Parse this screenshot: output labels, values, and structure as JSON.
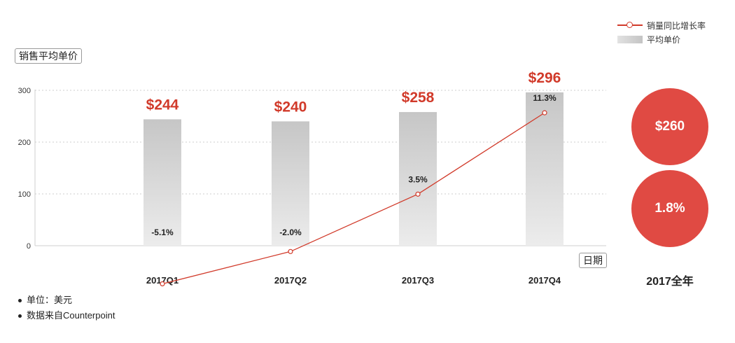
{
  "chart_data": {
    "type": "bar",
    "categories": [
      "2017Q1",
      "2017Q2",
      "2017Q3",
      "2017Q4"
    ],
    "series": [
      {
        "name": "平均单价",
        "type": "bar",
        "values": [
          244,
          240,
          258,
          296
        ],
        "labels": [
          "$244",
          "$240",
          "$258",
          "$296"
        ]
      },
      {
        "name": "销量同比增长率",
        "type": "line",
        "values": [
          -5.1,
          -2.0,
          3.5,
          11.3
        ],
        "labels": [
          "-5.1%",
          "-2.0%",
          "3.5%",
          "11.3%"
        ]
      }
    ],
    "ylabel": "销售平均单价",
    "xlabel": "日期",
    "yticks": [
      0,
      100,
      200,
      300
    ],
    "ylim": [
      0,
      300
    ],
    "grid": true,
    "legend": "top-right",
    "colors": {
      "accent": "#d13a2a",
      "circle": "#e04a43",
      "bar_top": "#c6c6c6",
      "bar_bottom": "#ececec"
    }
  },
  "annual": {
    "label": "2017全年",
    "price": "$260",
    "growth": "1.8%"
  },
  "notes": [
    "单位：美元",
    "数据来自Counterpoint"
  ]
}
